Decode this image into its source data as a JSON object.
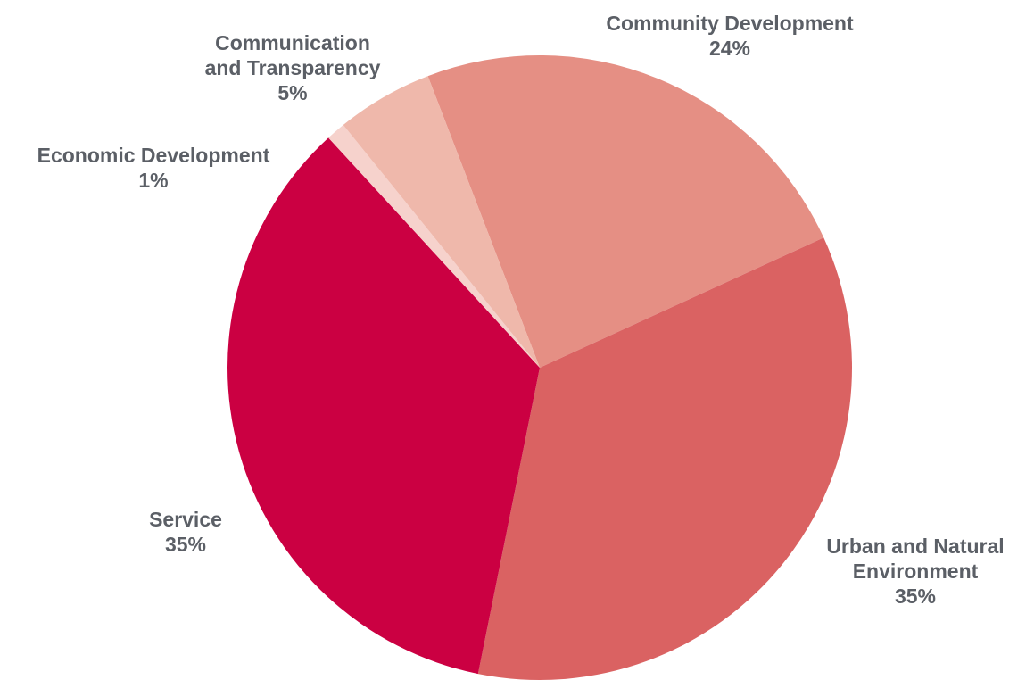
{
  "chart_data": {
    "type": "pie",
    "title": "",
    "legend": "none",
    "start_angle_deg": 339,
    "direction": "clockwise",
    "slices": [
      {
        "label_lines": [
          "Community Development"
        ],
        "percent_label": "24%",
        "value": 24,
        "color": "#e58f84"
      },
      {
        "label_lines": [
          "Urban and Natural",
          "Environment"
        ],
        "percent_label": "35%",
        "value": 35,
        "color": "#da6262"
      },
      {
        "label_lines": [
          "Service"
        ],
        "percent_label": "35%",
        "value": 35,
        "color": "#cb0042"
      },
      {
        "label_lines": [
          "Economic Development"
        ],
        "percent_label": "1%",
        "value": 1,
        "color": "#f6d2cc"
      },
      {
        "label_lines": [
          "Communication",
          "and Transparency"
        ],
        "percent_label": "5%",
        "value": 5,
        "color": "#efb8ab"
      }
    ]
  }
}
